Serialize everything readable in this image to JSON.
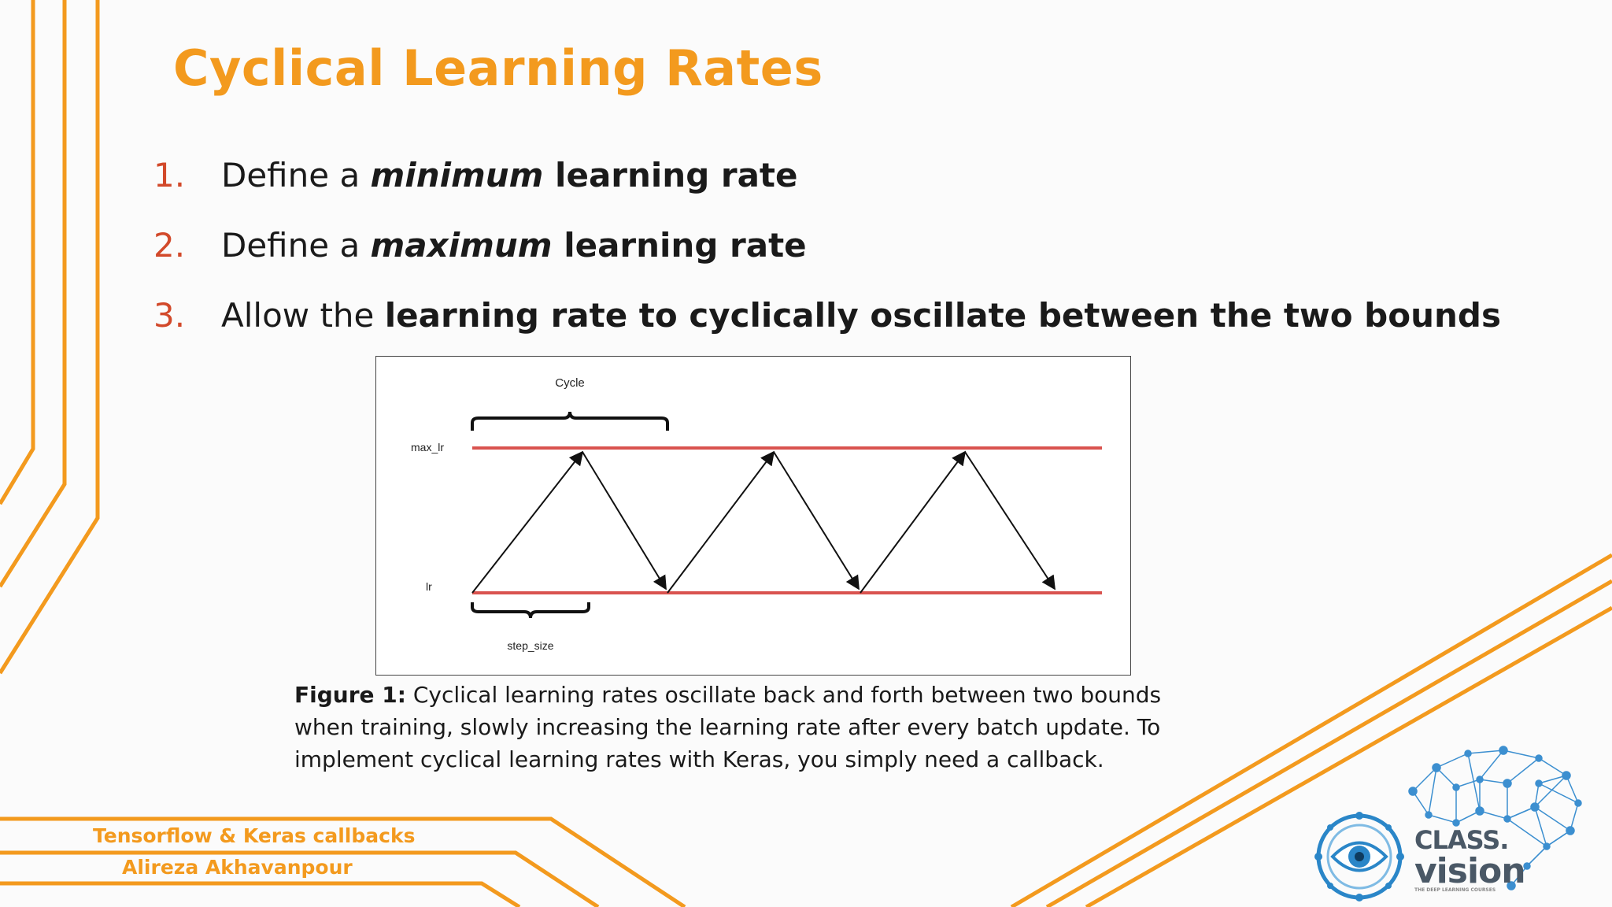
{
  "slide": {
    "title": "Cyclical Learning Rates",
    "steps": [
      {
        "number": "1.",
        "prefix": "Define a ",
        "emphasis": "minimum",
        "suffix": " learning rate"
      },
      {
        "number": "2.",
        "prefix": "Define a ",
        "emphasis": "maximum",
        "suffix": " learning rate"
      },
      {
        "number": "3.",
        "prefix": "Allow the ",
        "bold": "learning rate to cyclically oscillate between the two bounds"
      }
    ]
  },
  "figure": {
    "cycle_label": "Cycle",
    "max_label": "max_lr",
    "min_label": "lr",
    "step_label": "step_size",
    "line_color": "#d9534f",
    "caption_label": "Figure 1:",
    "caption_text": " Cyclical learning rates oscillate back and forth between two bounds when training, slowly increasing the learning rate after every batch update. To implement cyclical learning rates with Keras, you simply need a callback."
  },
  "footer": {
    "line1": "Tensorflow & Keras callbacks",
    "line2": "Alireza Akhavanpour"
  },
  "logo": {
    "line1": "CLASS.",
    "line2": "vision",
    "tagline": "THE DEEP LEARNING COURSES"
  },
  "colors": {
    "accent": "#f39a1e",
    "number": "#d2492a",
    "text": "#1a1a1a",
    "logo_blue": "#2a86c8"
  }
}
